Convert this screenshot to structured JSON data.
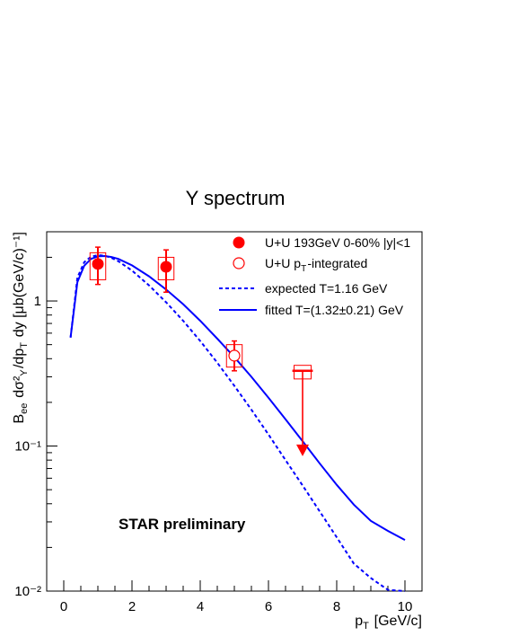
{
  "chart_data": {
    "type": "scatter",
    "title": "Υ spectrum",
    "ylabel": "B_ee dσ²_Υ/dp_T dy [μb(GeV/c)⁻¹]",
    "xlabel": "p_T [GeV/c]",
    "annotation": "STAR preliminary",
    "xlim": [
      -0.5,
      10.5
    ],
    "ylim": [
      0.01,
      3.0
    ],
    "yscale": "log",
    "x_ticks": [
      "0",
      "2",
      "4",
      "6",
      "8",
      "10"
    ],
    "y_ticks": [
      "10⁻²",
      "10⁻¹",
      "1"
    ],
    "grid": false,
    "legend_position": "top-right",
    "legend": [
      "U+U 193GeV 0-60% |y|<1",
      "U+U p_T-integrated",
      "expected T=1.16 GeV",
      "fitted T=(1.32±0.21) GeV"
    ],
    "colors": {
      "data": "#ff0000",
      "curves": "#0000ff"
    },
    "series": [
      {
        "name": "U+U 193GeV 0-60% |y|<1",
        "marker": "filled-circle",
        "x": [
          1.0,
          3.0,
          5.0
        ],
        "y": [
          1.8,
          1.72,
          0.44
        ],
        "stat_err_low": [
          1.3,
          1.15,
          0.33
        ],
        "stat_err_high": [
          2.35,
          2.25,
          0.53
        ],
        "sys_box_low": [
          1.4,
          1.4,
          0.35
        ],
        "sys_box_high": [
          2.15,
          2.0,
          0.5
        ],
        "box_halfwidth": 0.23
      },
      {
        "name": "U+U p_T-integrated",
        "marker": "open-circle",
        "x": [
          5.0
        ],
        "y": [
          0.42
        ]
      },
      {
        "name": "upper limit",
        "marker": "arrow-down",
        "x": [
          7.0
        ],
        "y_from": [
          0.33
        ],
        "y_to": [
          0.085
        ],
        "bar_halfwidth": 0.3,
        "box_low": 0.29,
        "box_high": 0.36
      },
      {
        "name": "expected T=1.16 GeV",
        "style": "dashed",
        "x": [
          0.2,
          0.4,
          0.6,
          0.8,
          1.0,
          1.2,
          1.4,
          1.6,
          2.0,
          2.5,
          3.0,
          3.5,
          4.0,
          4.5,
          5.0,
          5.5,
          6.0,
          6.5,
          7.0,
          7.5,
          8.0,
          8.5,
          9.0,
          9.5,
          10.0
        ],
        "y": [
          0.56,
          1.45,
          1.85,
          2.02,
          2.07,
          2.05,
          1.98,
          1.88,
          1.62,
          1.28,
          0.98,
          0.73,
          0.53,
          0.375,
          0.26,
          0.178,
          0.12,
          0.08,
          0.0535,
          0.0355,
          0.0235,
          0.0155,
          0.0123,
          0.0102,
          0.0094
        ]
      },
      {
        "name": "fitted T=(1.32±0.21) GeV",
        "style": "solid",
        "x": [
          0.2,
          0.4,
          0.6,
          0.8,
          1.0,
          1.2,
          1.4,
          1.6,
          2.0,
          2.5,
          3.0,
          3.5,
          4.0,
          4.5,
          5.0,
          5.5,
          6.0,
          6.5,
          7.0,
          7.5,
          8.0,
          8.5,
          9.0,
          9.5,
          10.0
        ],
        "y": [
          0.56,
          1.35,
          1.75,
          1.95,
          2.03,
          2.04,
          2.01,
          1.95,
          1.76,
          1.48,
          1.2,
          0.95,
          0.73,
          0.55,
          0.41,
          0.3,
          0.215,
          0.153,
          0.108,
          0.076,
          0.054,
          0.0395,
          0.0305,
          0.026,
          0.0225
        ]
      }
    ]
  }
}
